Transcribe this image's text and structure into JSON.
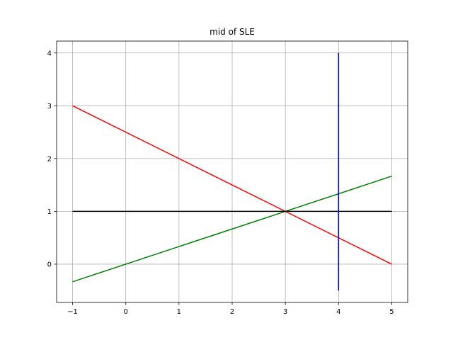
{
  "chart_data": {
    "type": "line",
    "title": "mid of SLE",
    "xlabel": "",
    "ylabel": "",
    "xlim": [
      -1.3,
      5.3
    ],
    "ylim": [
      -0.725,
      4.225
    ],
    "grid": true,
    "x_ticks": [
      -1,
      0,
      1,
      2,
      3,
      4,
      5
    ],
    "y_ticks": [
      0,
      1,
      2,
      3,
      4
    ],
    "x_tick_labels": [
      "−1",
      "0",
      "1",
      "2",
      "3",
      "4",
      "5"
    ],
    "y_tick_labels": [
      "0",
      "1",
      "2",
      "3",
      "4"
    ],
    "series": [
      {
        "color": "#ff0000",
        "x": [
          -1,
          5
        ],
        "y": [
          3,
          0
        ]
      },
      {
        "color": "#008000",
        "x": [
          -1,
          5
        ],
        "y": [
          -0.3333,
          1.6667
        ]
      },
      {
        "color": "#000000",
        "x": [
          -1,
          5
        ],
        "y": [
          1,
          1
        ]
      },
      {
        "color": "#0000ff",
        "x": [
          4,
          4
        ],
        "y": [
          -0.5,
          4
        ]
      }
    ]
  }
}
